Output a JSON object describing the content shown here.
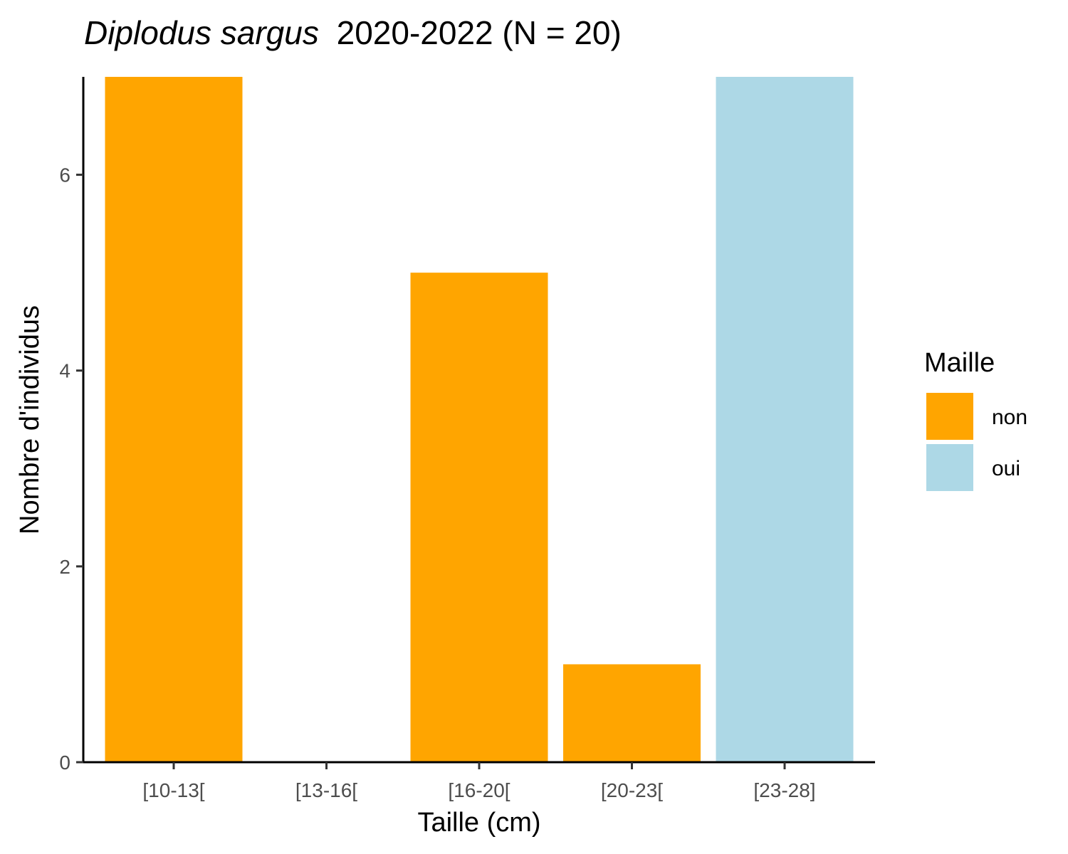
{
  "chart_data": {
    "type": "bar",
    "title_italic": "Diplodus sargus",
    "title_rest": "2020-2022 (N = 20)",
    "xlabel": "Taille (cm)",
    "ylabel": "Nombre d'individus",
    "categories": [
      "[10-13[",
      "[13-16[",
      "[16-20[",
      "[20-23[",
      "[23-28]"
    ],
    "values": [
      7,
      0,
      5,
      1,
      7
    ],
    "maille": [
      "non",
      "non",
      "non",
      "non",
      "oui"
    ],
    "ylim": [
      0,
      7
    ],
    "yticks": [
      0,
      2,
      4,
      6
    ],
    "grid": false,
    "legend": {
      "title": "Maille",
      "position": "right",
      "entries": [
        {
          "label": "non",
          "color": "#FFA500"
        },
        {
          "label": "oui",
          "color": "#ADD8E6"
        }
      ]
    }
  }
}
